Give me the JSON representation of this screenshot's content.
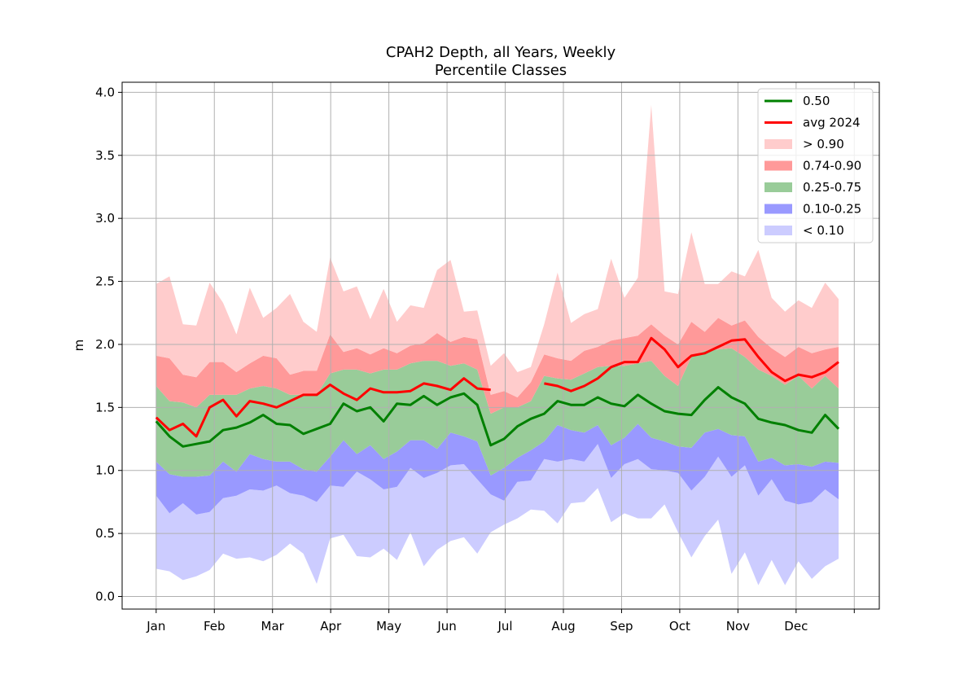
{
  "chart_data": {
    "type": "area",
    "title": "CPAH2 Depth, all Years, Weekly",
    "subtitle": "Percentile Classes",
    "xlabel": "",
    "ylabel": "m",
    "ylim": [
      -0.1,
      4.08
    ],
    "xlim": [
      -0.585,
      12.43
    ],
    "yticks": [
      0.0,
      0.5,
      1.0,
      1.5,
      2.0,
      2.5,
      3.0,
      3.5,
      4.0
    ],
    "ytick_labels": [
      "0.0",
      "0.5",
      "1.0",
      "1.5",
      "2.0",
      "2.5",
      "3.0",
      "3.5",
      "4.0"
    ],
    "xticks": [
      0,
      1,
      2,
      3,
      4,
      5,
      6,
      7,
      8,
      9,
      10,
      11,
      12
    ],
    "xtick_labels": [
      "Jan",
      "Feb",
      "Mar",
      "Apr",
      "May",
      "Jun",
      "Jul",
      "Aug",
      "Sep",
      "Oct",
      "Nov",
      "Dec",
      ""
    ],
    "grid": true,
    "legend_position": "top-right",
    "legend": [
      {
        "label": "0.50",
        "kind": "line",
        "color": "#008000"
      },
      {
        "label": "avg 2024",
        "kind": "line",
        "color": "#ff0000"
      },
      {
        "label": "> 0.90",
        "kind": "patch",
        "color": "#ffcccc"
      },
      {
        "label": "0.74-0.90",
        "kind": "patch",
        "color": "#ff9999"
      },
      {
        "label": "0.25-0.75",
        "kind": "patch",
        "color": "#99cc99"
      },
      {
        "label": "0.10-0.25",
        "kind": "patch",
        "color": "#9999ff"
      },
      {
        "label": "< 0.10",
        "kind": "patch",
        "color": "#ccccff"
      }
    ],
    "x": [
      0.0,
      0.23,
      0.46,
      0.69,
      0.92,
      1.15,
      1.38,
      1.61,
      1.84,
      2.07,
      2.3,
      2.53,
      2.76,
      2.99,
      3.22,
      3.45,
      3.68,
      3.91,
      4.14,
      4.37,
      4.6,
      4.83,
      5.06,
      5.29,
      5.52,
      5.75,
      5.98,
      6.21,
      6.44,
      6.67,
      6.9,
      7.13,
      7.36,
      7.59,
      7.82,
      8.05,
      8.28,
      8.51,
      8.74,
      8.97,
      9.2,
      9.43,
      9.66,
      9.89,
      10.12,
      10.35,
      10.58,
      10.81,
      11.04,
      11.27,
      11.5,
      11.73
    ],
    "bands": {
      "min": [
        0.22,
        0.2,
        0.13,
        0.16,
        0.21,
        0.34,
        0.3,
        0.31,
        0.28,
        0.33,
        0.42,
        0.34,
        0.1,
        0.46,
        0.49,
        0.32,
        0.31,
        0.38,
        0.29,
        0.51,
        0.24,
        0.37,
        0.44,
        0.47,
        0.34,
        0.51,
        0.57,
        0.62,
        0.69,
        0.68,
        0.58,
        0.74,
        0.75,
        0.86,
        0.59,
        0.66,
        0.62,
        0.62,
        0.73,
        0.51,
        0.31,
        0.48,
        0.61,
        0.18,
        0.35,
        0.09,
        0.29,
        0.09,
        0.28,
        0.14,
        0.24,
        0.3
      ],
      "p10": [
        0.8,
        0.66,
        0.74,
        0.65,
        0.67,
        0.78,
        0.8,
        0.85,
        0.84,
        0.88,
        0.82,
        0.8,
        0.75,
        0.88,
        0.87,
        0.99,
        0.93,
        0.85,
        0.87,
        1.02,
        0.94,
        0.98,
        1.04,
        1.05,
        0.93,
        0.81,
        0.76,
        0.91,
        0.92,
        1.09,
        1.07,
        1.09,
        1.07,
        1.21,
        0.94,
        1.05,
        1.09,
        1.01,
        1.0,
        0.98,
        0.84,
        0.95,
        1.11,
        0.95,
        1.04,
        0.8,
        0.93,
        0.76,
        0.73,
        0.75,
        0.85,
        0.77
      ],
      "p25": [
        1.07,
        0.97,
        0.95,
        0.95,
        0.96,
        1.07,
        0.99,
        1.13,
        1.09,
        1.07,
        1.07,
        1.01,
        0.99,
        1.11,
        1.24,
        1.13,
        1.2,
        1.09,
        1.15,
        1.24,
        1.24,
        1.17,
        1.3,
        1.27,
        1.23,
        0.96,
        1.02,
        1.1,
        1.16,
        1.23,
        1.36,
        1.32,
        1.3,
        1.36,
        1.2,
        1.26,
        1.37,
        1.26,
        1.23,
        1.19,
        1.18,
        1.3,
        1.33,
        1.28,
        1.27,
        1.07,
        1.1,
        1.04,
        1.05,
        1.03,
        1.07,
        1.06
      ],
      "p75": [
        1.67,
        1.55,
        1.54,
        1.5,
        1.6,
        1.6,
        1.6,
        1.65,
        1.67,
        1.65,
        1.6,
        1.6,
        1.6,
        1.77,
        1.8,
        1.8,
        1.77,
        1.8,
        1.8,
        1.85,
        1.87,
        1.87,
        1.83,
        1.85,
        1.8,
        1.45,
        1.5,
        1.5,
        1.55,
        1.75,
        1.73,
        1.72,
        1.77,
        1.82,
        1.83,
        1.83,
        1.85,
        1.87,
        1.75,
        1.67,
        1.9,
        1.95,
        1.96,
        1.97,
        1.9,
        1.8,
        1.75,
        1.68,
        1.75,
        1.65,
        1.75,
        1.65
      ],
      "p90": [
        1.91,
        1.89,
        1.76,
        1.74,
        1.86,
        1.86,
        1.78,
        1.85,
        1.91,
        1.89,
        1.76,
        1.79,
        1.79,
        2.08,
        1.94,
        1.97,
        1.92,
        1.97,
        1.93,
        1.99,
        2.01,
        2.09,
        2.02,
        2.06,
        2.04,
        1.6,
        1.63,
        1.58,
        1.7,
        1.92,
        1.89,
        1.87,
        1.95,
        1.98,
        2.03,
        2.05,
        2.07,
        2.16,
        2.07,
        2.0,
        2.18,
        2.1,
        2.21,
        2.15,
        2.19,
        2.06,
        1.97,
        1.9,
        1.98,
        1.93,
        1.96,
        1.98
      ],
      "max": [
        2.48,
        2.54,
        2.16,
        2.15,
        2.49,
        2.33,
        2.08,
        2.45,
        2.21,
        2.29,
        2.4,
        2.18,
        2.1,
        2.69,
        2.42,
        2.46,
        2.2,
        2.44,
        2.18,
        2.31,
        2.29,
        2.59,
        2.67,
        2.26,
        2.27,
        1.83,
        1.93,
        1.78,
        1.82,
        2.16,
        2.57,
        2.17,
        2.24,
        2.28,
        2.68,
        2.37,
        2.53,
        3.9,
        2.42,
        2.4,
        2.89,
        2.48,
        2.48,
        2.58,
        2.54,
        2.75,
        2.37,
        2.26,
        2.35,
        2.29,
        2.49,
        2.36
      ]
    },
    "series": [
      {
        "name": "0.50",
        "color": "#008000",
        "values": [
          1.39,
          1.27,
          1.19,
          1.21,
          1.23,
          1.32,
          1.34,
          1.38,
          1.44,
          1.37,
          1.36,
          1.29,
          1.33,
          1.37,
          1.53,
          1.47,
          1.5,
          1.39,
          1.53,
          1.52,
          1.59,
          1.52,
          1.58,
          1.61,
          1.52,
          1.2,
          1.25,
          1.35,
          1.41,
          1.45,
          1.55,
          1.52,
          1.52,
          1.58,
          1.53,
          1.51,
          1.6,
          1.53,
          1.47,
          1.45,
          1.44,
          1.56,
          1.66,
          1.58,
          1.53,
          1.41,
          1.38,
          1.36,
          1.32,
          1.3,
          1.44,
          1.33
        ]
      },
      {
        "name": "avg 2024",
        "color": "#ff0000",
        "values": [
          1.42,
          1.32,
          1.37,
          1.27,
          1.5,
          1.56,
          1.43,
          1.55,
          1.53,
          1.5,
          1.55,
          1.6,
          1.6,
          1.68,
          1.61,
          1.56,
          1.65,
          1.62,
          1.62,
          1.63,
          1.69,
          1.67,
          1.64,
          1.73,
          1.65,
          1.64,
          null,
          null,
          null,
          1.69,
          1.67,
          1.63,
          1.67,
          1.73,
          1.82,
          1.86,
          1.86,
          2.05,
          1.96,
          1.82,
          1.91,
          1.93,
          1.98,
          2.03,
          2.04,
          1.9,
          1.78,
          1.71,
          1.76,
          1.74,
          1.78,
          1.86
        ]
      }
    ]
  }
}
